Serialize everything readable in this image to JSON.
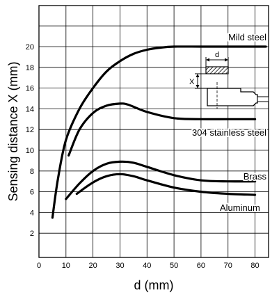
{
  "chart_data": {
    "type": "line",
    "title": "",
    "xlabel": "d (mm)",
    "ylabel": "Sensing distance X (mm)",
    "xlim": [
      0,
      85
    ],
    "ylim": [
      0,
      22
    ],
    "x_ticks": [
      "0",
      "10",
      "20",
      "30",
      "40",
      "50",
      "60",
      "70",
      "80"
    ],
    "y_ticks": [
      "2",
      "4",
      "6",
      "8",
      "10",
      "12",
      "14",
      "16",
      "18",
      "20"
    ],
    "grid": true,
    "series": [
      {
        "name": "Mild steel",
        "x": [
          5,
          7,
          10,
          15,
          20,
          25,
          30,
          35,
          40,
          45,
          50,
          60,
          70,
          80,
          84
        ],
        "y": [
          3.5,
          7.2,
          11,
          14,
          16,
          17.6,
          18.6,
          19.3,
          19.7,
          19.9,
          20,
          20,
          20,
          20,
          20
        ]
      },
      {
        "name": "304 stainless steel",
        "x": [
          11,
          15,
          20,
          25,
          30,
          33,
          40,
          50,
          60,
          70,
          80
        ],
        "y": [
          9.5,
          12,
          13.6,
          14.3,
          14.5,
          14.4,
          13.7,
          13.1,
          13,
          13,
          13
        ]
      },
      {
        "name": "Brass",
        "x": [
          10,
          15,
          20,
          25,
          30,
          35,
          40,
          50,
          60,
          70,
          80
        ],
        "y": [
          5.3,
          6.8,
          8,
          8.7,
          8.9,
          8.8,
          8.4,
          7.6,
          7.1,
          7,
          7
        ]
      },
      {
        "name": "Aluminum",
        "x": [
          14,
          20,
          25,
          30,
          35,
          40,
          50,
          60,
          70,
          80
        ],
        "y": [
          5.8,
          6.9,
          7.5,
          7.7,
          7.5,
          7.1,
          6.4,
          6,
          5.8,
          5.7
        ]
      }
    ],
    "inset": {
      "d_label": "d",
      "x_label": "X"
    }
  }
}
